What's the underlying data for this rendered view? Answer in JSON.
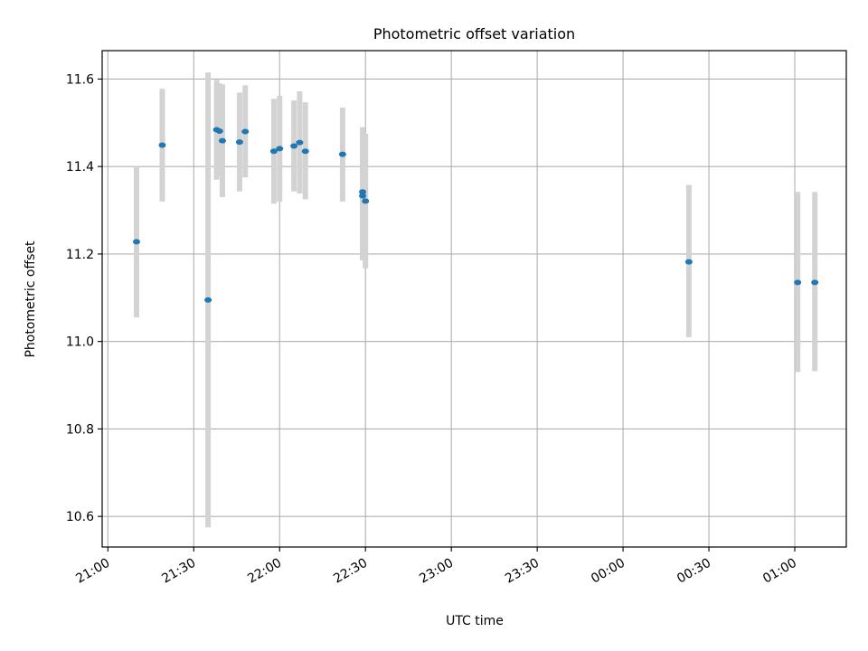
{
  "chart_data": {
    "type": "scatter",
    "title": "Photometric offset variation",
    "xlabel": "UTC time",
    "ylabel": "Photometric offset",
    "x_axis": "time",
    "x_ticks": [
      "21:00",
      "21:30",
      "22:00",
      "22:30",
      "23:00",
      "23:30",
      "00:00",
      "00:30",
      "01:00"
    ],
    "y_ticks": [
      "10.6",
      "10.8",
      "11.0",
      "11.2",
      "11.4",
      "11.6"
    ],
    "xlim": [
      "20:58",
      "01:18"
    ],
    "ylim": [
      10.53,
      11.665
    ],
    "grid": true,
    "x_tick_label_rotation": "diagonal",
    "series": [
      {
        "marker_color": "#1f77b4",
        "errorbar_color": "#d3d3d3",
        "points": [
          {
            "t": "21:10",
            "y": 11.228,
            "ylo": 11.055,
            "yhi": 11.4
          },
          {
            "t": "21:19",
            "y": 11.449,
            "ylo": 11.32,
            "yhi": 11.578
          },
          {
            "t": "21:35",
            "y": 11.095,
            "ylo": 10.575,
            "yhi": 11.615
          },
          {
            "t": "21:38",
            "y": 11.484,
            "ylo": 11.37,
            "yhi": 11.598
          },
          {
            "t": "21:39",
            "y": 11.481,
            "ylo": 11.38,
            "yhi": 11.59
          },
          {
            "t": "21:40",
            "y": 11.459,
            "ylo": 11.33,
            "yhi": 11.588
          },
          {
            "t": "21:46",
            "y": 11.456,
            "ylo": 11.343,
            "yhi": 11.569
          },
          {
            "t": "21:48",
            "y": 11.48,
            "ylo": 11.375,
            "yhi": 11.586
          },
          {
            "t": "21:58",
            "y": 11.435,
            "ylo": 11.315,
            "yhi": 11.555
          },
          {
            "t": "22:00",
            "y": 11.441,
            "ylo": 11.32,
            "yhi": 11.562
          },
          {
            "t": "22:05",
            "y": 11.447,
            "ylo": 11.343,
            "yhi": 11.551
          },
          {
            "t": "22:07",
            "y": 11.455,
            "ylo": 11.338,
            "yhi": 11.572
          },
          {
            "t": "22:09",
            "y": 11.435,
            "ylo": 11.325,
            "yhi": 11.547
          },
          {
            "t": "22:22",
            "y": 11.428,
            "ylo": 11.32,
            "yhi": 11.535
          },
          {
            "t": "22:29",
            "y": 11.342,
            "ylo": 11.195,
            "yhi": 11.49
          },
          {
            "t": "22:29",
            "y": 11.333,
            "ylo": 11.185,
            "yhi": 11.48
          },
          {
            "t": "22:30",
            "y": 11.321,
            "ylo": 11.167,
            "yhi": 11.475
          },
          {
            "t": "00:23",
            "y": 11.182,
            "ylo": 11.01,
            "yhi": 11.358
          },
          {
            "t": "01:01",
            "y": 11.135,
            "ylo": 10.93,
            "yhi": 11.342
          },
          {
            "t": "01:07",
            "y": 11.135,
            "ylo": 10.932,
            "yhi": 11.342
          }
        ]
      }
    ]
  }
}
